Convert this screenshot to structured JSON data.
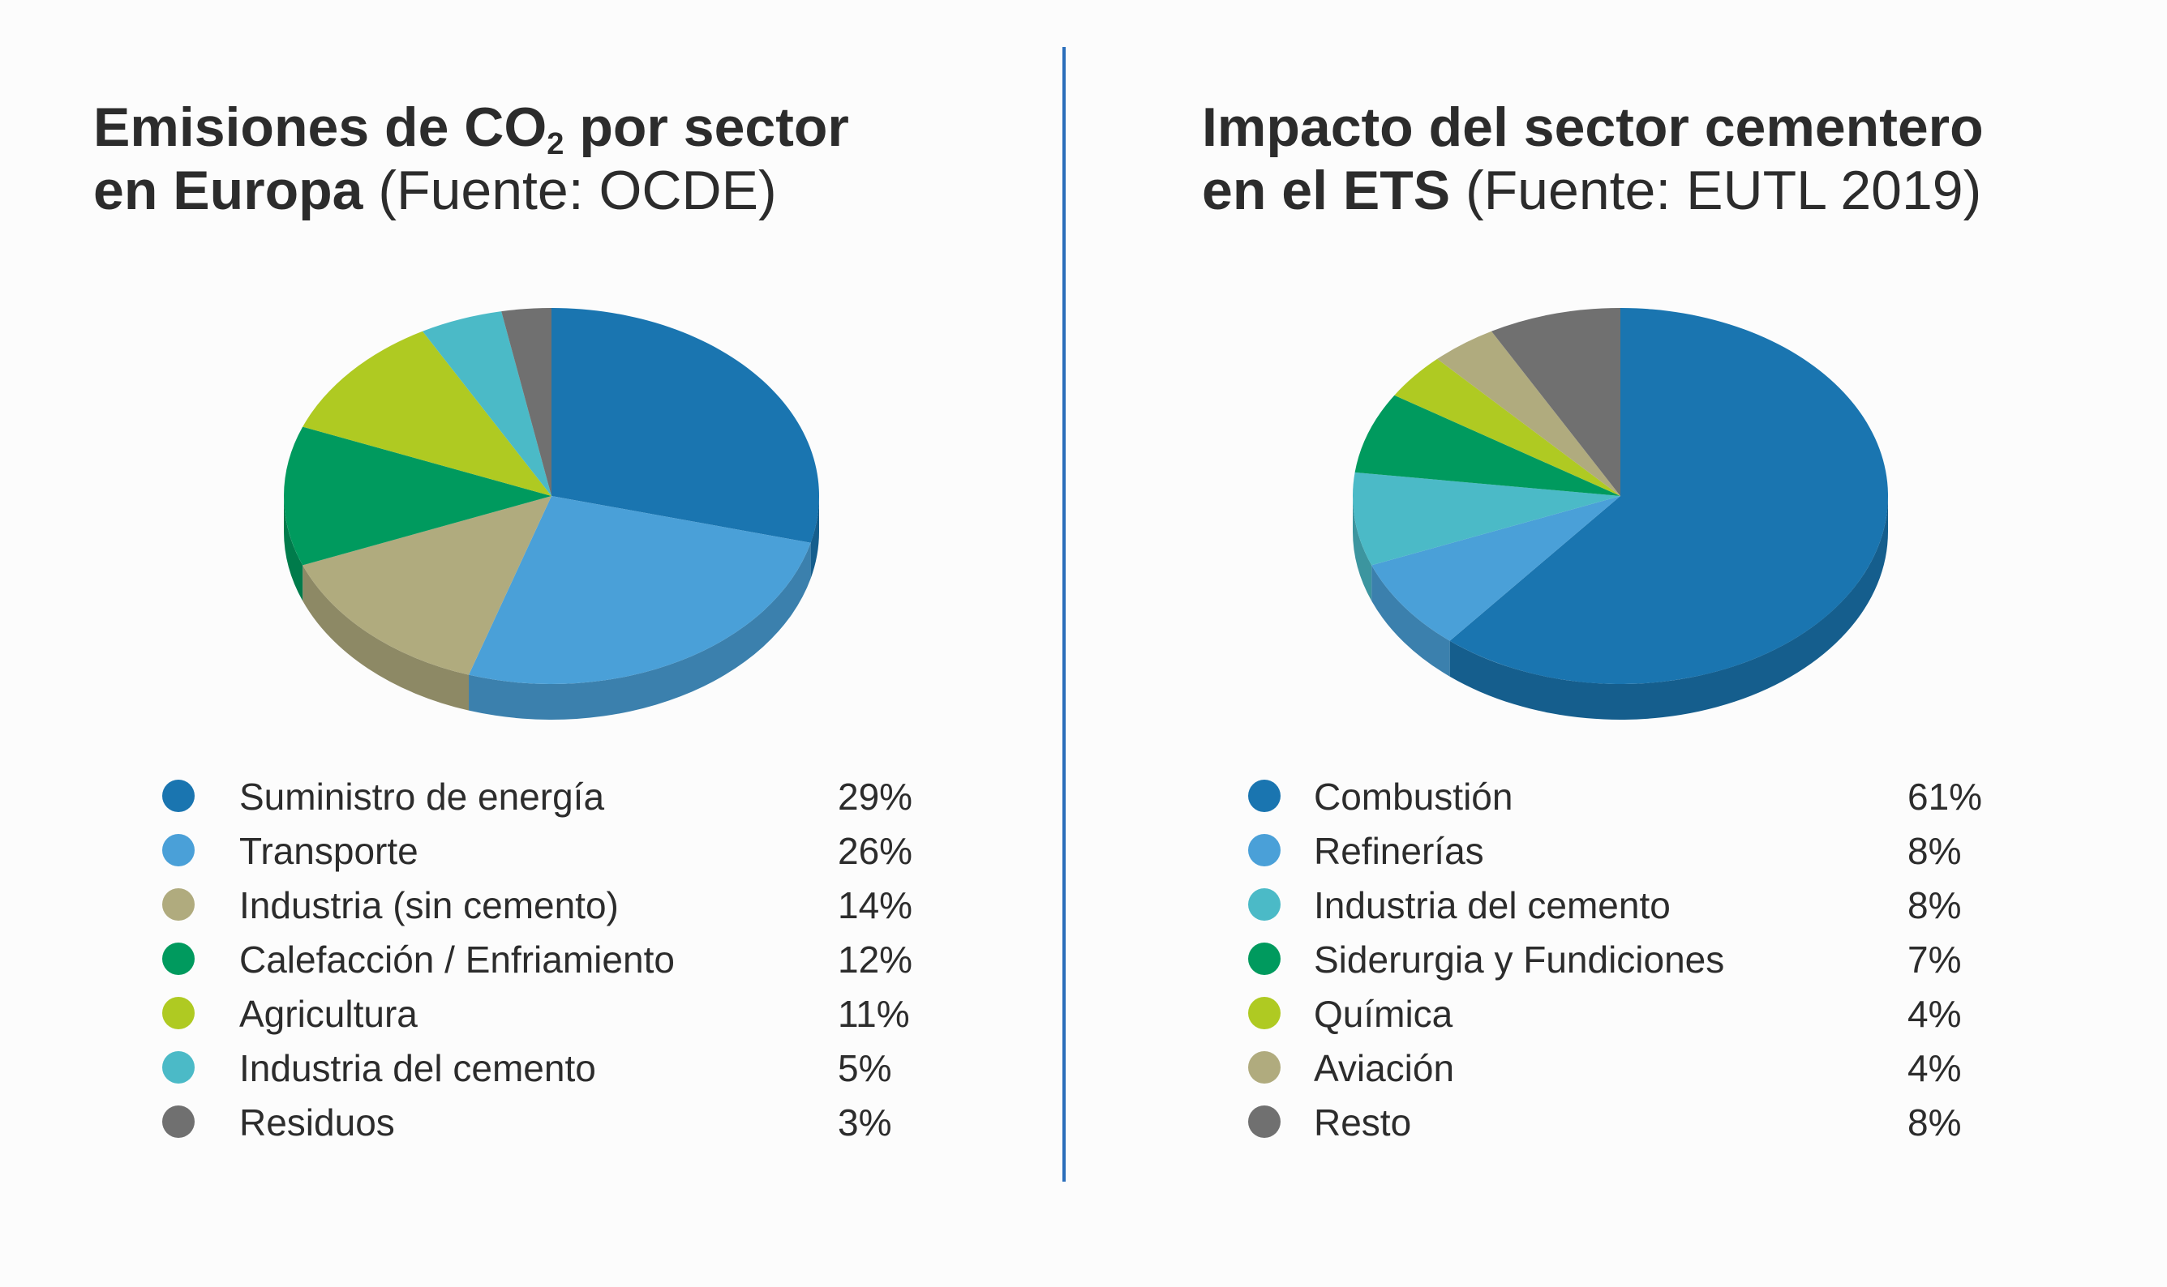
{
  "chart_data": [
    {
      "type": "pie",
      "title_main_1": "Emisiones de CO",
      "title_sub": "2",
      "title_main_2": " por sector",
      "title_line2_bold": "en Europa",
      "title_source": " (Fuente: OCDE)",
      "slices": [
        {
          "label": "Suministro de energía",
          "value": 29,
          "display": "29%",
          "color": "#1a75b0"
        },
        {
          "label": "Transporte",
          "value": 26,
          "display": "26%",
          "color": "#4aa0d8"
        },
        {
          "label": "Industria (sin cemento)",
          "value": 14,
          "display": "14%",
          "color": "#b0ab7e"
        },
        {
          "label": "Calefacción / Enfriamiento",
          "value": 12,
          "display": "12%",
          "color": "#009a5e"
        },
        {
          "label": "Agricultura",
          "value": 11,
          "display": "11%",
          "color": "#afca22"
        },
        {
          "label": "Industria del cemento",
          "value": 5,
          "display": "5%",
          "color": "#4bbac7"
        },
        {
          "label": "Residuos",
          "value": 3,
          "display": "3%",
          "color": "#707070"
        }
      ]
    },
    {
      "type": "pie",
      "title_line1": "Impacto del sector cementero",
      "title_line2_bold": "en el ETS",
      "title_source": " (Fuente: EUTL 2019)",
      "slices": [
        {
          "label": "Combustión",
          "value": 61,
          "display": "61%",
          "color": "#1a75b0"
        },
        {
          "label": "Refinerías",
          "value": 8,
          "display": "8%",
          "color": "#4aa0d8"
        },
        {
          "label": "Industria del cemento",
          "value": 8,
          "display": "8%",
          "color": "#4bbac7"
        },
        {
          "label": "Siderurgia y Fundiciones",
          "value": 7,
          "display": "7%",
          "color": "#009a5e"
        },
        {
          "label": "Química",
          "value": 4,
          "display": "4%",
          "color": "#afca22"
        },
        {
          "label": "Aviación",
          "value": 4,
          "display": "4%",
          "color": "#b0ab7e"
        },
        {
          "label": "Resto",
          "value": 8,
          "display": "8%",
          "color": "#707070"
        }
      ]
    }
  ]
}
